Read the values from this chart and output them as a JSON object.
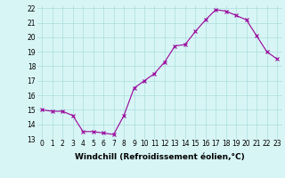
{
  "x": [
    0,
    1,
    2,
    3,
    4,
    5,
    6,
    7,
    8,
    9,
    10,
    11,
    12,
    13,
    14,
    15,
    16,
    17,
    18,
    19,
    20,
    21,
    22,
    23
  ],
  "y": [
    15.0,
    14.9,
    14.9,
    14.6,
    13.5,
    13.5,
    13.4,
    13.3,
    14.6,
    16.5,
    17.0,
    17.5,
    18.3,
    19.4,
    19.5,
    20.4,
    21.2,
    21.9,
    21.8,
    21.5,
    21.2,
    20.1,
    19.0,
    18.5
  ],
  "line_color": "#990099",
  "bg_color": "#d8f5f5",
  "grid_color": "#aadddd",
  "xlabel": "Windchill (Refroidissement éolien,°C)",
  "ylim": [
    13,
    22
  ],
  "xlim": [
    -0.5,
    23.5
  ],
  "yticks": [
    13,
    14,
    15,
    16,
    17,
    18,
    19,
    20,
    21,
    22
  ],
  "xticks": [
    0,
    1,
    2,
    3,
    4,
    5,
    6,
    7,
    8,
    9,
    10,
    11,
    12,
    13,
    14,
    15,
    16,
    17,
    18,
    19,
    20,
    21,
    22,
    23
  ],
  "tick_fontsize": 5.5,
  "label_fontsize": 6.5
}
